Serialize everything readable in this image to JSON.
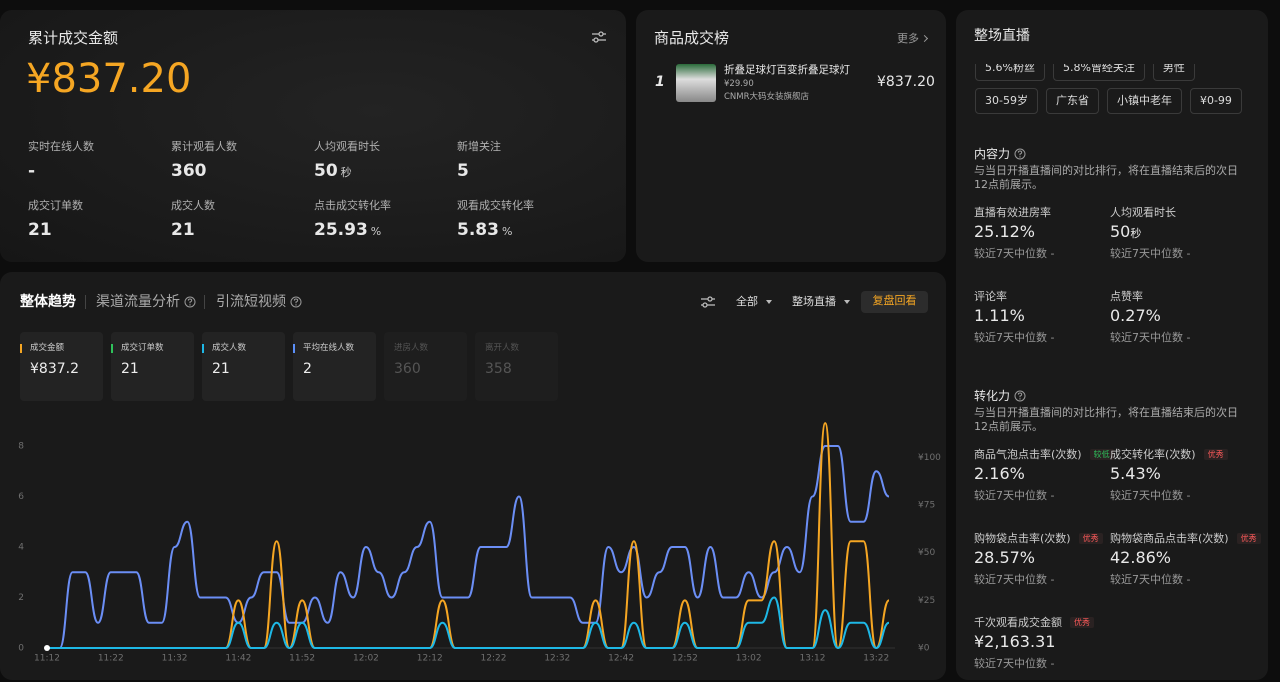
{
  "summary": {
    "title": "累计成交金额",
    "total": "¥837.20",
    "metrics": [
      {
        "label": "实时在线人数",
        "value": "-"
      },
      {
        "label": "累计观看人数",
        "value": "360"
      },
      {
        "label": "人均观看时长",
        "value": "50",
        "unit": "秒"
      },
      {
        "label": "新增关注",
        "value": "5"
      },
      {
        "label": "成交订单数",
        "value": "21"
      },
      {
        "label": "成交人数",
        "value": "21"
      },
      {
        "label": "点击成交转化率",
        "value": "25.93",
        "unit": "%"
      },
      {
        "label": "观看成交转化率",
        "value": "5.83",
        "unit": "%"
      }
    ]
  },
  "ranking": {
    "title": "商品成交榜",
    "more": "更多",
    "items": [
      {
        "rank": "1",
        "name": "折叠足球灯百变折叠足球灯",
        "price": "¥29.90",
        "shop": "CNMR大码女装旗舰店",
        "amount": "¥837.20"
      }
    ]
  },
  "live": {
    "title": "整场直播",
    "tags": [
      "5.6%粉丝",
      "5.8%曾经关注",
      "男性",
      "30-59岁",
      "广东省",
      "小镇中老年",
      "¥0-99"
    ],
    "sections": [
      {
        "title": "内容力",
        "desc": "与当日开播直播间的对比排行，将在直播结束后的次日12点前展示。",
        "metrics": [
          {
            "label": "直播有效进房率",
            "value": "25.12%",
            "note": "较近7天中位数 -"
          },
          {
            "label": "人均观看时长",
            "value": "50",
            "unit": "秒",
            "note": "较近7天中位数 -"
          },
          {
            "label": "评论率",
            "value": "1.11%",
            "note": "较近7天中位数 -"
          },
          {
            "label": "点赞率",
            "value": "0.27%",
            "note": "较近7天中位数 -"
          }
        ]
      },
      {
        "title": "转化力",
        "desc": "与当日开播直播间的对比排行，将在直播结束后的次日12点前展示。",
        "metrics": [
          {
            "label": "商品气泡点击率(次数)",
            "badge": "较低",
            "badge_color": "#2fc25b",
            "value": "2.16%",
            "note": "较近7天中位数 -"
          },
          {
            "label": "成交转化率(次数)",
            "badge": "优秀",
            "badge_color": "#ff5a5a",
            "value": "5.43%",
            "note": "较近7天中位数 -"
          },
          {
            "label": "购物袋点击率(次数)",
            "badge": "优秀",
            "badge_color": "#ff5a5a",
            "value": "28.57%",
            "note": "较近7天中位数 -"
          },
          {
            "label": "购物袋商品点击率(次数)",
            "badge": "优秀",
            "badge_color": "#ff5a5a",
            "value": "42.86%",
            "note": "较近7天中位数 -"
          },
          {
            "label": "千次观看成交金额",
            "badge": "优秀",
            "badge_color": "#ff5a5a",
            "value": "¥2,163.31",
            "note": "较近7天中位数 -"
          }
        ]
      }
    ]
  },
  "trend": {
    "tabs": [
      "整体趋势",
      "渠道流量分析",
      "引流短视频"
    ],
    "filters": [
      "全部",
      "整场直播"
    ],
    "button": "复盘回看",
    "cards": [
      {
        "label": "成交金额",
        "value": "¥837.2",
        "color": "#f5a623"
      },
      {
        "label": "成交订单数",
        "value": "21",
        "color": "#2fc25b"
      },
      {
        "label": "成交人数",
        "value": "21",
        "color": "#1eb8e6"
      },
      {
        "label": "平均在线人数",
        "value": "2",
        "color": "#5b8ff9"
      },
      {
        "label": "进房人数",
        "value": "360",
        "dim": true
      },
      {
        "label": "离开人数",
        "value": "358",
        "dim": true
      }
    ]
  },
  "chart_data": {
    "type": "line",
    "categories": [
      "11:12",
      null,
      null,
      null,
      null,
      "11:22",
      null,
      null,
      null,
      null,
      "11:32",
      null,
      null,
      null,
      null,
      "11:42",
      null,
      null,
      null,
      null,
      "11:52",
      null,
      null,
      null,
      null,
      "12:02",
      null,
      null,
      null,
      null,
      "12:12",
      null,
      null,
      null,
      null,
      "12:22",
      null,
      null,
      null,
      null,
      "12:32",
      null,
      null,
      null,
      null,
      "12:42",
      null,
      null,
      null,
      null,
      "12:52",
      null,
      null,
      null,
      null,
      "13:02",
      null,
      null,
      null,
      null,
      "13:12",
      null,
      null,
      null,
      null,
      "13:22",
      null
    ],
    "series": [
      {
        "color": "#6b8ef5",
        "values": [
          0,
          0,
          3,
          3,
          1,
          3,
          3,
          3,
          1,
          1,
          4,
          5,
          2,
          2,
          2,
          1,
          2,
          3,
          3,
          1,
          1,
          2,
          1,
          3,
          2,
          4,
          3,
          2,
          3,
          4,
          5,
          2,
          2,
          2,
          4,
          4,
          4,
          6,
          2,
          2,
          2,
          2,
          1,
          1,
          4,
          3,
          4,
          2,
          3,
          4,
          4,
          2,
          4,
          2,
          2,
          3,
          2,
          3,
          4,
          3,
          6,
          8,
          8,
          5,
          5,
          7,
          6
        ]
      },
      {
        "color": "#f5a623",
        "axis": "y2",
        "values": [
          0,
          0,
          0,
          0,
          0,
          0,
          0,
          0,
          0,
          0,
          0,
          0,
          0,
          0,
          0,
          25,
          0,
          0,
          56,
          0,
          25,
          0,
          0,
          0,
          0,
          0,
          0,
          0,
          0,
          0,
          0,
          25,
          0,
          0,
          0,
          0,
          0,
          0,
          0,
          0,
          0,
          0,
          0,
          25,
          0,
          0,
          56,
          0,
          0,
          0,
          25,
          0,
          0,
          0,
          0,
          25,
          25,
          56,
          0,
          0,
          0,
          118,
          0,
          56,
          56,
          0,
          25
        ]
      },
      {
        "color": "#1eb8e6",
        "values": [
          0,
          0,
          0,
          0,
          0,
          0,
          0,
          0,
          0,
          0,
          0,
          0,
          0,
          0,
          0,
          1,
          0,
          0,
          1,
          0,
          1,
          0,
          0,
          0,
          0,
          0,
          0,
          0,
          0,
          0,
          0,
          1,
          0,
          0,
          0,
          0,
          0,
          0,
          0,
          0,
          0,
          0,
          0,
          1,
          0,
          0,
          1,
          0,
          0,
          0,
          1,
          0,
          0,
          0,
          0,
          1,
          1,
          2,
          0,
          0,
          0,
          1.5,
          0,
          1,
          1,
          0,
          1
        ]
      }
    ],
    "ylim": [
      0,
      8
    ],
    "yticks": [
      0,
      2,
      4,
      6,
      8
    ],
    "y2lim": [
      0,
      106
    ],
    "y2ticks": [
      {
        "value": 0,
        "label": "¥0"
      },
      {
        "value": 25,
        "label": "¥25"
      },
      {
        "value": 50,
        "label": "¥50"
      },
      {
        "value": 75,
        "label": "¥75"
      },
      {
        "value": 100,
        "label": "¥100"
      }
    ],
    "grid": false
  }
}
